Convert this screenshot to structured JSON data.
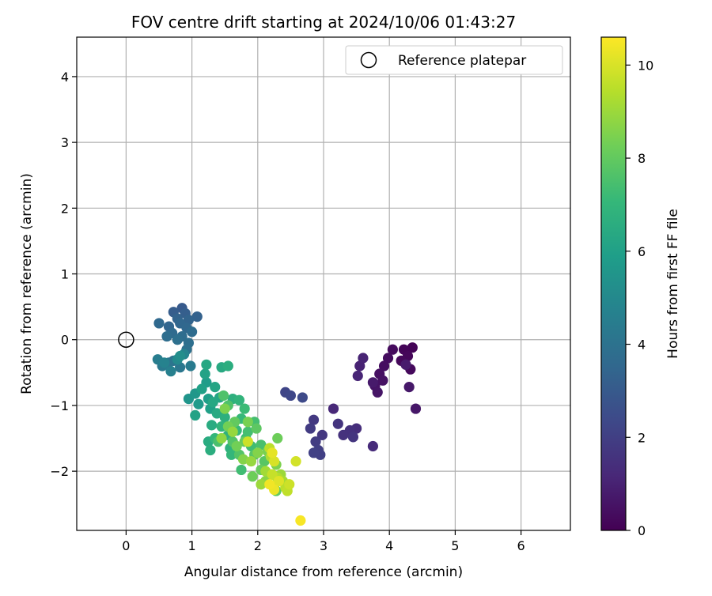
{
  "chart_data": {
    "type": "scatter",
    "title": "FOV centre drift starting at 2024/10/06 01:43:27",
    "xlabel": "Angular distance from reference (arcmin)",
    "ylabel": "Rotation from reference (arcmin)",
    "xlim": [
      -0.75,
      6.75
    ],
    "ylim": [
      -2.9,
      4.6
    ],
    "x_ticks": [
      0,
      1,
      2,
      3,
      4,
      5,
      6
    ],
    "x_tick_labels": [
      "0",
      "1",
      "2",
      "3",
      "4",
      "5",
      "6"
    ],
    "y_ticks": [
      -2,
      -1,
      0,
      1,
      2,
      3,
      4
    ],
    "y_tick_labels": [
      "−2",
      "−1",
      "0",
      "1",
      "2",
      "3",
      "4"
    ],
    "grid": true,
    "legend": {
      "placement": "top-right",
      "entries": [
        {
          "label": "Reference platepar",
          "marker": "open-circle"
        }
      ]
    },
    "reference_point": {
      "x": 0,
      "y": 0
    },
    "colorbar": {
      "label": "Hours from first FF file",
      "range": [
        0,
        10.6
      ],
      "ticks": [
        0,
        2,
        4,
        6,
        8,
        10
      ],
      "tick_labels": [
        "0",
        "2",
        "4",
        "6",
        "8",
        "10"
      ],
      "colormap": "viridis",
      "colors": [
        "#440154",
        "#482878",
        "#3e4989",
        "#31688e",
        "#26828e",
        "#1f9e89",
        "#35b779",
        "#6ece58",
        "#b5de2b",
        "#fde725"
      ]
    },
    "points": [
      [
        4.35,
        -0.12,
        0.05
      ],
      [
        4.22,
        -0.15,
        0.1
      ],
      [
        4.28,
        -0.25,
        0.15
      ],
      [
        4.18,
        -0.32,
        0.2
      ],
      [
        4.32,
        -0.45,
        0.25
      ],
      [
        4.05,
        -0.15,
        0.3
      ],
      [
        3.98,
        -0.28,
        0.35
      ],
      [
        3.92,
        -0.4,
        0.4
      ],
      [
        3.85,
        -0.52,
        0.45
      ],
      [
        3.9,
        -0.62,
        0.5
      ],
      [
        3.78,
        -0.7,
        0.55
      ],
      [
        3.82,
        -0.8,
        0.6
      ],
      [
        4.4,
        -1.05,
        0.65
      ],
      [
        4.3,
        -0.72,
        0.7
      ],
      [
        3.75,
        -0.65,
        0.75
      ],
      [
        4.25,
        -0.38,
        0.8
      ],
      [
        3.55,
        -0.4,
        1.0
      ],
      [
        3.6,
        -0.28,
        1.05
      ],
      [
        3.52,
        -0.55,
        1.1
      ],
      [
        3.15,
        -1.05,
        1.2
      ],
      [
        3.75,
        -1.62,
        1.3
      ],
      [
        3.5,
        -1.35,
        1.4
      ],
      [
        3.4,
        -1.38,
        1.5
      ],
      [
        3.3,
        -1.45,
        1.55
      ],
      [
        3.22,
        -1.28,
        1.6
      ],
      [
        3.45,
        -1.48,
        1.65
      ],
      [
        2.98,
        -1.45,
        1.7
      ],
      [
        2.85,
        -1.22,
        1.8
      ],
      [
        2.8,
        -1.35,
        1.85
      ],
      [
        2.88,
        -1.55,
        1.9
      ],
      [
        2.92,
        -1.68,
        1.95
      ],
      [
        2.95,
        -1.75,
        2.0
      ],
      [
        2.85,
        -1.72,
        2.05
      ],
      [
        2.42,
        -0.8,
        2.2
      ],
      [
        2.5,
        -0.85,
        2.3
      ],
      [
        2.68,
        -0.88,
        2.4
      ],
      [
        0.85,
        0.48,
        3.0
      ],
      [
        0.72,
        0.42,
        3.1
      ],
      [
        0.9,
        0.4,
        3.2
      ],
      [
        1.08,
        0.35,
        3.3
      ],
      [
        0.78,
        0.32,
        3.35
      ],
      [
        0.95,
        0.3,
        3.4
      ],
      [
        0.65,
        0.2,
        3.45
      ],
      [
        0.82,
        0.25,
        3.5
      ],
      [
        0.92,
        0.18,
        3.55
      ],
      [
        0.5,
        0.25,
        3.6
      ],
      [
        0.7,
        0.1,
        3.65
      ],
      [
        1.0,
        0.12,
        3.7
      ],
      [
        0.85,
        0.05,
        3.75
      ],
      [
        0.62,
        0.05,
        3.8
      ],
      [
        0.95,
        -0.05,
        3.85
      ],
      [
        0.78,
        0.0,
        3.9
      ],
      [
        0.92,
        -0.15,
        3.95
      ],
      [
        0.72,
        -0.32,
        4.0
      ],
      [
        0.65,
        -0.35,
        4.1
      ],
      [
        0.82,
        -0.42,
        4.2
      ],
      [
        0.55,
        -0.4,
        4.3
      ],
      [
        0.98,
        -0.4,
        4.4
      ],
      [
        0.48,
        -0.3,
        4.5
      ],
      [
        0.68,
        -0.48,
        4.6
      ],
      [
        0.58,
        -0.35,
        4.7
      ],
      [
        0.88,
        -0.22,
        4.8
      ],
      [
        0.78,
        -0.3,
        5.0
      ],
      [
        0.82,
        -0.25,
        5.2
      ],
      [
        0.95,
        -0.9,
        5.5
      ],
      [
        1.05,
        -0.82,
        5.6
      ],
      [
        1.1,
        -0.98,
        5.7
      ],
      [
        1.22,
        -0.65,
        5.8
      ],
      [
        1.25,
        -0.9,
        5.9
      ],
      [
        1.28,
        -1.05,
        6.0
      ],
      [
        1.15,
        -0.75,
        6.0
      ],
      [
        1.05,
        -1.15,
        6.1
      ],
      [
        1.2,
        -0.52,
        6.1
      ],
      [
        1.35,
        -0.72,
        6.2
      ],
      [
        1.42,
        -0.88,
        6.2
      ],
      [
        1.22,
        -0.38,
        6.3
      ],
      [
        1.32,
        -0.95,
        6.3
      ],
      [
        1.45,
        -0.42,
        6.4
      ],
      [
        1.38,
        -1.12,
        6.4
      ],
      [
        1.3,
        -1.3,
        6.5
      ],
      [
        1.25,
        -1.55,
        6.5
      ],
      [
        1.28,
        -1.68,
        6.6
      ],
      [
        1.55,
        -0.4,
        6.6
      ],
      [
        1.5,
        -1.18,
        6.7
      ],
      [
        1.62,
        -0.9,
        6.7
      ],
      [
        1.55,
        -1.45,
        6.8
      ],
      [
        1.58,
        -1.65,
        6.8
      ],
      [
        1.72,
        -0.92,
        6.9
      ],
      [
        1.45,
        -1.32,
        6.9
      ],
      [
        1.35,
        -1.5,
        7.0
      ],
      [
        1.6,
        -1.75,
        7.0
      ],
      [
        1.75,
        -1.2,
        7.1
      ],
      [
        1.68,
        -1.38,
        7.1
      ],
      [
        1.8,
        -1.05,
        7.2
      ],
      [
        1.82,
        -1.5,
        7.2
      ],
      [
        1.9,
        -1.62,
        7.3
      ],
      [
        1.75,
        -1.98,
        7.3
      ],
      [
        1.85,
        -1.4,
        7.4
      ],
      [
        1.95,
        -1.25,
        7.4
      ],
      [
        2.05,
        -1.6,
        7.5
      ],
      [
        1.4,
        -1.55,
        7.5
      ],
      [
        1.55,
        -1.0,
        7.6
      ],
      [
        1.48,
        -0.85,
        7.6
      ],
      [
        1.62,
        -1.55,
        7.7
      ],
      [
        1.72,
        -1.75,
        7.7
      ],
      [
        1.95,
        -1.75,
        7.8
      ],
      [
        2.1,
        -1.85,
        7.8
      ],
      [
        1.98,
        -1.35,
        7.9
      ],
      [
        2.22,
        -2.05,
        7.9
      ],
      [
        2.28,
        -2.3,
        8.0
      ],
      [
        1.65,
        -1.25,
        8.0
      ],
      [
        1.8,
        -1.55,
        8.1
      ],
      [
        2.05,
        -1.98,
        8.1
      ],
      [
        1.92,
        -2.08,
        8.2
      ],
      [
        2.3,
        -1.5,
        8.2
      ],
      [
        1.55,
        -1.32,
        8.3
      ],
      [
        1.68,
        -1.62,
        8.3
      ],
      [
        1.85,
        -1.25,
        8.4
      ],
      [
        2.15,
        -1.7,
        8.4
      ],
      [
        2.28,
        -1.9,
        8.5
      ],
      [
        1.5,
        -1.05,
        8.5
      ],
      [
        1.78,
        -1.82,
        8.6
      ],
      [
        2.0,
        -1.72,
        8.6
      ],
      [
        2.12,
        -2.15,
        8.7
      ],
      [
        2.25,
        -2.25,
        8.7
      ],
      [
        1.45,
        -1.5,
        8.8
      ],
      [
        1.62,
        -1.4,
        8.9
      ],
      [
        1.9,
        -1.85,
        8.9
      ],
      [
        2.05,
        -2.2,
        9.0
      ],
      [
        2.35,
        -2.05,
        9.0
      ],
      [
        2.12,
        -2.0,
        9.1
      ],
      [
        2.38,
        -2.15,
        9.2
      ],
      [
        2.2,
        -1.78,
        9.3
      ],
      [
        2.3,
        -2.1,
        9.4
      ],
      [
        2.42,
        -2.25,
        9.5
      ],
      [
        2.18,
        -1.65,
        9.5
      ],
      [
        2.45,
        -2.3,
        9.6
      ],
      [
        2.22,
        -2.05,
        9.7
      ],
      [
        2.48,
        -2.2,
        9.8
      ],
      [
        1.85,
        -1.55,
        9.8
      ],
      [
        2.58,
        -1.85,
        9.9
      ],
      [
        2.25,
        -1.85,
        10.0
      ],
      [
        2.32,
        -2.15,
        10.1
      ],
      [
        2.22,
        -1.72,
        10.2
      ],
      [
        2.25,
        -2.28,
        10.3
      ],
      [
        2.18,
        -2.2,
        10.4
      ],
      [
        2.65,
        -2.75,
        10.5
      ]
    ]
  }
}
